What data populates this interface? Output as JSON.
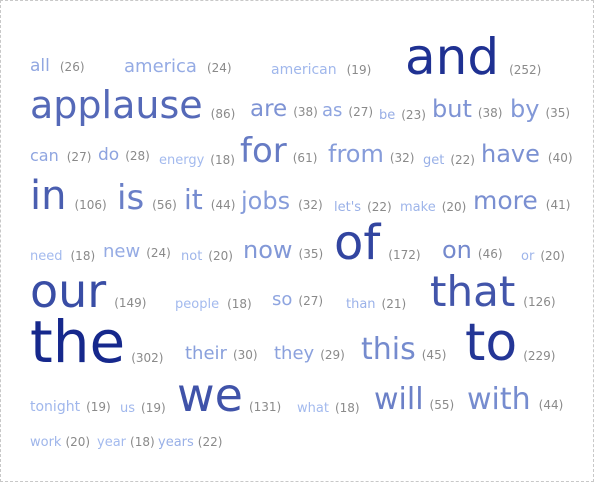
{
  "cloud": {
    "words": [
      {
        "word": "all",
        "count": "(26)"
      },
      {
        "word": "america",
        "count": "(24)"
      },
      {
        "word": "american",
        "count": "(19)"
      },
      {
        "word": "and",
        "count": "(252)"
      },
      {
        "word": "applause",
        "count": "(86)"
      },
      {
        "word": "are",
        "count": "(38)"
      },
      {
        "word": "as",
        "count": "(27)"
      },
      {
        "word": "be",
        "count": "(23)"
      },
      {
        "word": "but",
        "count": "(38)"
      },
      {
        "word": "by",
        "count": "(35)"
      },
      {
        "word": "can",
        "count": "(27)"
      },
      {
        "word": "do",
        "count": "(28)"
      },
      {
        "word": "energy",
        "count": "(18)"
      },
      {
        "word": "for",
        "count": "(61)"
      },
      {
        "word": "from",
        "count": "(32)"
      },
      {
        "word": "get",
        "count": "(22)"
      },
      {
        "word": "have",
        "count": "(40)"
      },
      {
        "word": "in",
        "count": "(106)"
      },
      {
        "word": "is",
        "count": "(56)"
      },
      {
        "word": "it",
        "count": "(44)"
      },
      {
        "word": "jobs",
        "count": "(32)"
      },
      {
        "word": "let's",
        "count": "(22)"
      },
      {
        "word": "make",
        "count": "(20)"
      },
      {
        "word": "more",
        "count": "(41)"
      },
      {
        "word": "need",
        "count": "(18)"
      },
      {
        "word": "new",
        "count": "(24)"
      },
      {
        "word": "not",
        "count": "(20)"
      },
      {
        "word": "now",
        "count": "(35)"
      },
      {
        "word": "of",
        "count": "(172)"
      },
      {
        "word": "on",
        "count": "(46)"
      },
      {
        "word": "or",
        "count": "(20)"
      },
      {
        "word": "our",
        "count": "(149)"
      },
      {
        "word": "people",
        "count": "(18)"
      },
      {
        "word": "so",
        "count": "(27)"
      },
      {
        "word": "than",
        "count": "(21)"
      },
      {
        "word": "that",
        "count": "(126)"
      },
      {
        "word": "the",
        "count": "(302)"
      },
      {
        "word": "their",
        "count": "(30)"
      },
      {
        "word": "they",
        "count": "(29)"
      },
      {
        "word": "this",
        "count": "(45)"
      },
      {
        "word": "to",
        "count": "(229)"
      },
      {
        "word": "tonight",
        "count": "(19)"
      },
      {
        "word": "us",
        "count": "(19)"
      },
      {
        "word": "we",
        "count": "(131)"
      },
      {
        "word": "what",
        "count": "(18)"
      },
      {
        "word": "will",
        "count": "(55)"
      },
      {
        "word": "with",
        "count": "(44)"
      },
      {
        "word": "work",
        "count": "(20)"
      },
      {
        "word": "year",
        "count": "(18)"
      },
      {
        "word": "years",
        "count": "(22)"
      }
    ]
  }
}
